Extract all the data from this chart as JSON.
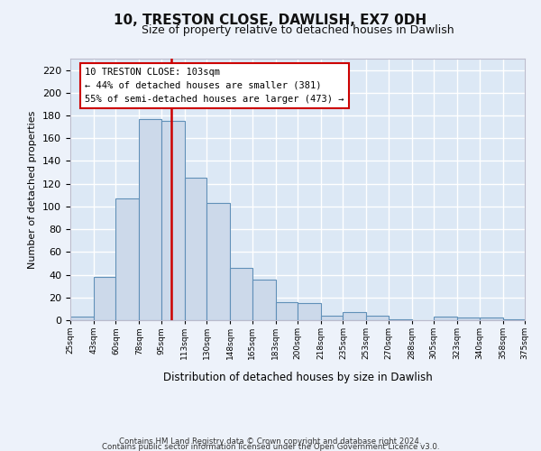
{
  "title": "10, TRESTON CLOSE, DAWLISH, EX7 0DH",
  "subtitle": "Size of property relative to detached houses in Dawlish",
  "xlabel": "Distribution of detached houses by size in Dawlish",
  "ylabel": "Number of detached properties",
  "bar_color": "#ccd9ea",
  "bar_edge_color": "#6090b8",
  "background_color": "#dce8f5",
  "grid_color": "#ffffff",
  "fig_background": "#edf2fa",
  "vline_x": 103,
  "vline_color": "#cc0000",
  "bin_edges": [
    25,
    43,
    60,
    78,
    95,
    113,
    130,
    148,
    165,
    183,
    200,
    218,
    235,
    253,
    270,
    288,
    305,
    323,
    340,
    358,
    375
  ],
  "bar_heights": [
    3,
    38,
    107,
    177,
    175,
    125,
    103,
    46,
    36,
    16,
    15,
    4,
    7,
    4,
    1,
    0,
    3,
    2,
    2,
    1
  ],
  "annotation_line1": "10 TRESTON CLOSE: 103sqm",
  "annotation_line2": "← 44% of detached houses are smaller (381)",
  "annotation_line3": "55% of semi-detached houses are larger (473) →",
  "annotation_box_color": "#ffffff",
  "annotation_box_edge": "#cc0000",
  "ylim": [
    0,
    230
  ],
  "yticks": [
    0,
    20,
    40,
    60,
    80,
    100,
    120,
    140,
    160,
    180,
    200,
    220
  ],
  "tick_labels": [
    "25sqm",
    "43sqm",
    "60sqm",
    "78sqm",
    "95sqm",
    "113sqm",
    "130sqm",
    "148sqm",
    "165sqm",
    "183sqm",
    "200sqm",
    "218sqm",
    "235sqm",
    "253sqm",
    "270sqm",
    "288sqm",
    "305sqm",
    "323sqm",
    "340sqm",
    "358sqm",
    "375sqm"
  ],
  "footnote1": "Contains HM Land Registry data © Crown copyright and database right 2024.",
  "footnote2": "Contains public sector information licensed under the Open Government Licence v3.0."
}
